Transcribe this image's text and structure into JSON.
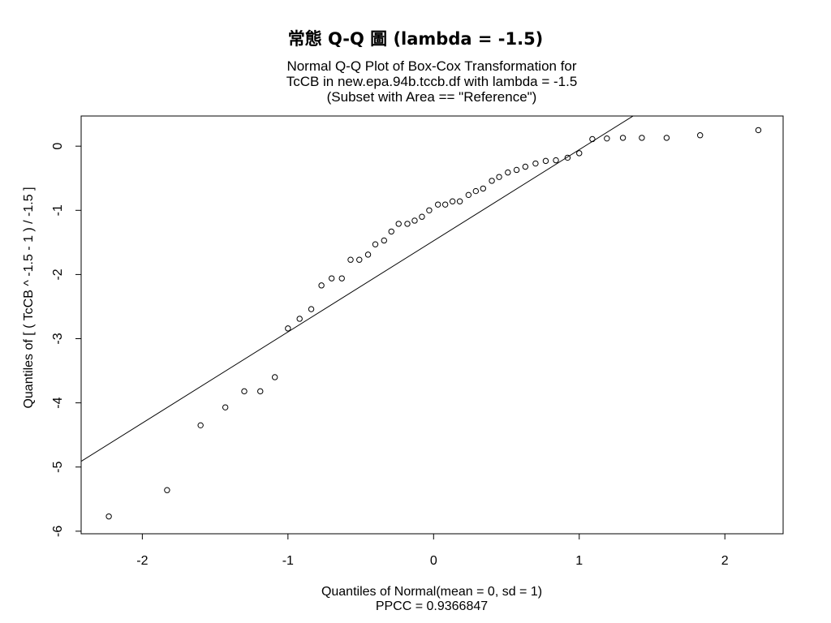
{
  "chart_data": {
    "type": "scatter",
    "title": "常態 Q-Q 圖 (lambda = -1.5)",
    "subtitle": [
      "Normal Q-Q Plot of Box-Cox Transformation for",
      "TcCB in new.epa.94b.tccb.df with lambda = -1.5",
      "(Subset with Area == \"Reference\")"
    ],
    "xlabel": "Quantiles of Normal(mean = 0, sd = 1)",
    "xlabel_2": "PPCC = 0.9366847",
    "ylabel": "Quantiles of [ ( TcCB ^ -1.5 - 1 ) / -1.5 ]",
    "xlim": [
      -2.42,
      2.4
    ],
    "ylim": [
      -6.04,
      0.47
    ],
    "xticks": [
      -2,
      -1,
      0,
      1,
      2
    ],
    "xtick_labels": [
      "-2",
      "-1",
      "0",
      "1",
      "2"
    ],
    "yticks": [
      0,
      -1,
      -2,
      -3,
      -4,
      -5,
      -6
    ],
    "ytick_labels": [
      "0",
      "-1",
      "-2",
      "-3",
      "-4",
      "-5",
      "-6"
    ],
    "grid": false,
    "point_marker": "open-circle",
    "reference_line": {
      "intercept": -1.475,
      "slope": 1.42
    },
    "points": {
      "x": [
        -2.23,
        -1.83,
        -1.6,
        -1.43,
        -1.3,
        -1.19,
        -1.09,
        -1.0,
        -0.92,
        -0.84,
        -0.77,
        -0.7,
        -0.63,
        -0.57,
        -0.51,
        -0.45,
        -0.4,
        -0.34,
        -0.29,
        -0.24,
        -0.18,
        -0.13,
        -0.08,
        -0.03,
        0.03,
        0.08,
        0.13,
        0.18,
        0.24,
        0.29,
        0.34,
        0.4,
        0.45,
        0.51,
        0.57,
        0.63,
        0.7,
        0.77,
        0.84,
        0.92,
        1.0,
        1.09,
        1.19,
        1.3,
        1.43,
        1.6,
        1.83,
        2.23
      ],
      "y": [
        -5.77,
        -5.36,
        -4.35,
        -4.07,
        -3.82,
        -3.82,
        -3.6,
        -2.84,
        -2.69,
        -2.54,
        -2.17,
        -2.06,
        -2.06,
        -1.77,
        -1.77,
        -1.69,
        -1.53,
        -1.47,
        -1.33,
        -1.21,
        -1.21,
        -1.16,
        -1.1,
        -1.0,
        -0.91,
        -0.91,
        -0.86,
        -0.86,
        -0.76,
        -0.7,
        -0.66,
        -0.54,
        -0.48,
        -0.41,
        -0.37,
        -0.32,
        -0.27,
        -0.23,
        -0.22,
        -0.18,
        -0.11,
        0.11,
        0.12,
        0.13,
        0.13,
        0.13,
        0.17,
        0.25
      ]
    }
  }
}
